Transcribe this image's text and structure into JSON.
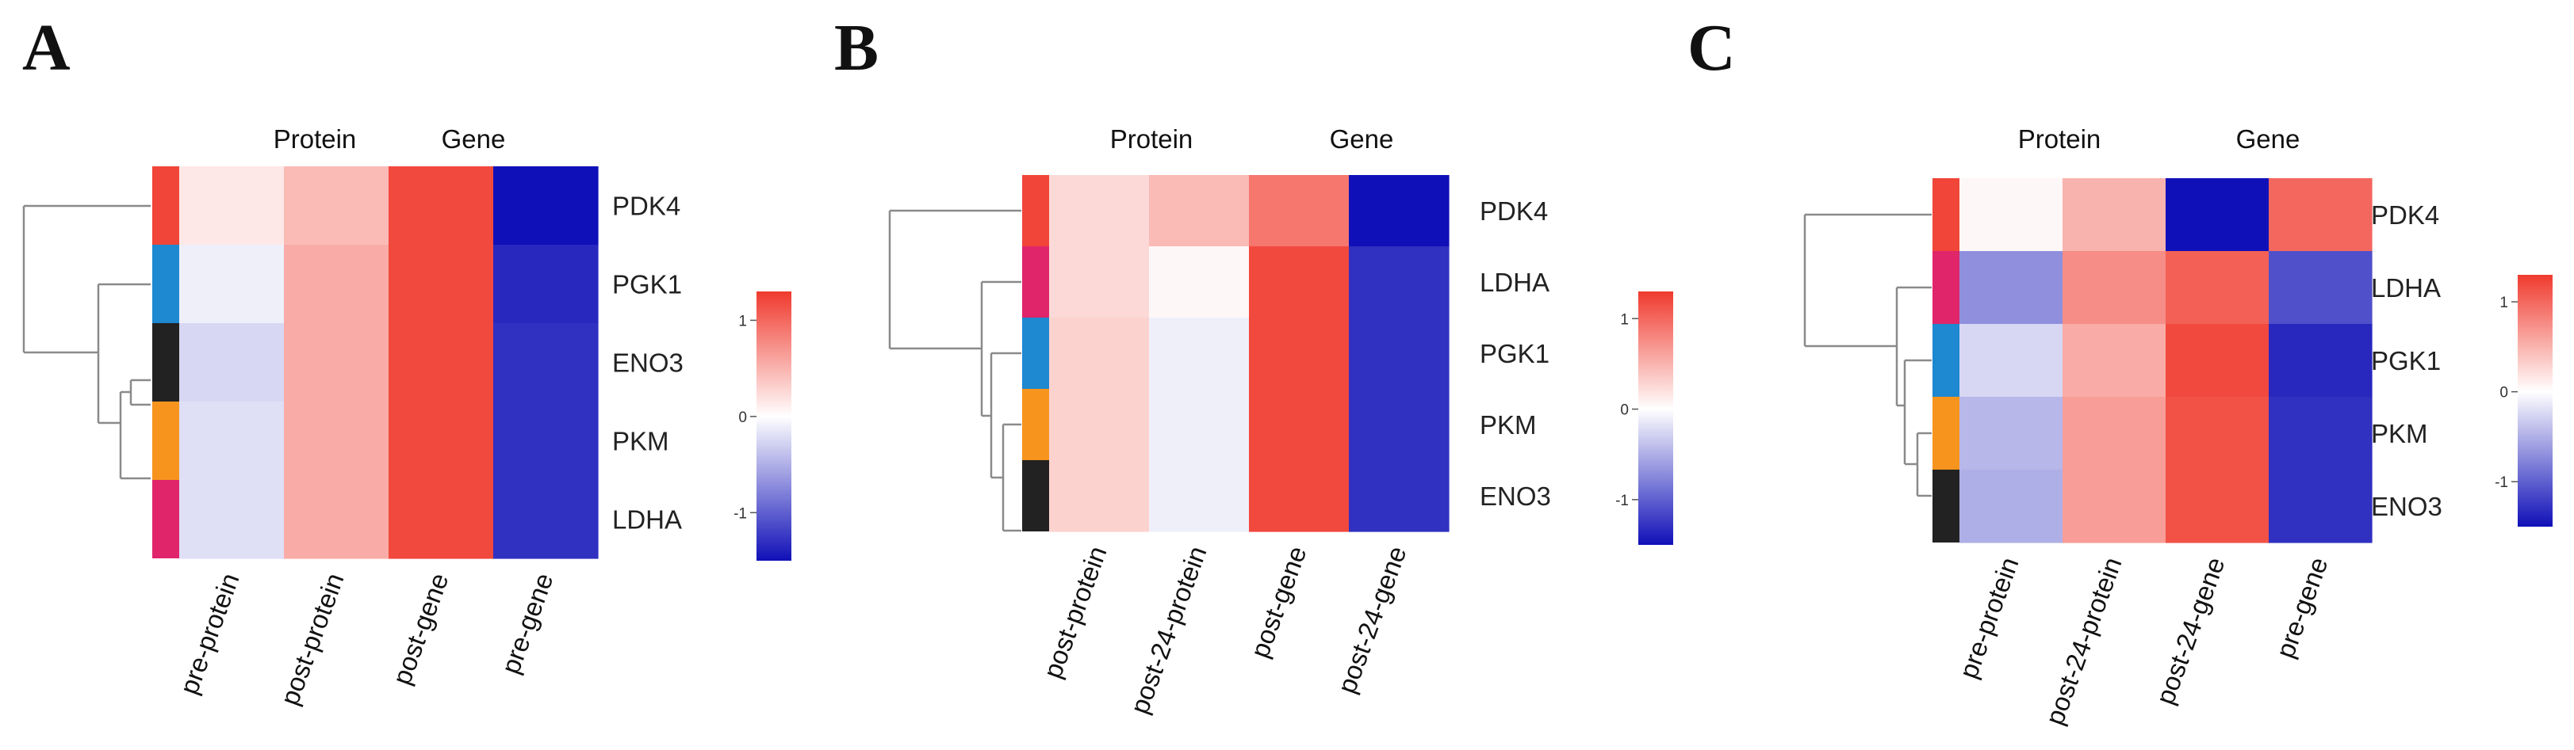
{
  "chart_data": [
    {
      "panel": "A",
      "type": "heatmap",
      "column_groups": [
        "Protein",
        "Gene"
      ],
      "columns": [
        "pre-protein",
        "post-protein",
        "post-gene",
        "pre-gene"
      ],
      "rows": [
        "PDK4",
        "PGK1",
        "ENO3",
        "PKM",
        "LDHA"
      ],
      "row_annotation_colors": [
        "#f04538",
        "#1e88d0",
        "#222222",
        "#f7941d",
        "#e0256a"
      ],
      "values": [
        [
          0.15,
          0.45,
          1.2,
          -1.5
        ],
        [
          -0.1,
          0.55,
          1.2,
          -1.35
        ],
        [
          -0.25,
          0.55,
          1.2,
          -1.3
        ],
        [
          -0.2,
          0.55,
          1.2,
          -1.3
        ],
        [
          -0.2,
          0.55,
          1.2,
          -1.3
        ]
      ],
      "colorbar": {
        "ticks": [
          1,
          0,
          -1
        ],
        "tick_labels": [
          "1",
          "0",
          "-1"
        ],
        "range": [
          -1.5,
          1.3
        ]
      },
      "colors": {
        "low": "#1010b8",
        "mid": "#ffffff",
        "high": "#f03a2e"
      }
    },
    {
      "panel": "B",
      "type": "heatmap",
      "column_groups": [
        "Protein",
        "Gene"
      ],
      "columns": [
        "post-protein",
        "post-24-protein",
        "post-gene",
        "post-24-gene"
      ],
      "rows": [
        "PDK4",
        "LDHA",
        "PGK1",
        "PKM",
        "ENO3"
      ],
      "row_annotation_colors": [
        "#f04538",
        "#e0256a",
        "#1e88d0",
        "#f7941d",
        "#222222"
      ],
      "values": [
        [
          0.25,
          0.45,
          0.9,
          -1.5
        ],
        [
          0.25,
          0.05,
          1.2,
          -1.3
        ],
        [
          0.3,
          -0.1,
          1.2,
          -1.3
        ],
        [
          0.3,
          -0.1,
          1.2,
          -1.3
        ],
        [
          0.3,
          -0.1,
          1.2,
          -1.3
        ]
      ],
      "colorbar": {
        "ticks": [
          1,
          0,
          -1
        ],
        "tick_labels": [
          "1",
          "0",
          "-1"
        ],
        "range": [
          -1.5,
          1.3
        ]
      },
      "colors": {
        "low": "#1010b8",
        "mid": "#ffffff",
        "high": "#f03a2e"
      }
    },
    {
      "panel": "C",
      "type": "heatmap",
      "column_groups": [
        "Protein",
        "Gene"
      ],
      "columns": [
        "pre-protein",
        "post-24-protein",
        "post-24-gene",
        "pre-gene"
      ],
      "rows": [
        "PDK4",
        "LDHA",
        "PGK1",
        "PKM",
        "ENO3"
      ],
      "row_annotation_colors": [
        "#f04538",
        "#e0256a",
        "#1e88d0",
        "#f7941d",
        "#222222"
      ],
      "values": [
        [
          0.05,
          0.5,
          -1.5,
          1.0
        ],
        [
          -0.7,
          0.75,
          1.05,
          -1.1
        ],
        [
          -0.25,
          0.55,
          1.2,
          -1.35
        ],
        [
          -0.45,
          0.65,
          1.15,
          -1.3
        ],
        [
          -0.5,
          0.65,
          1.15,
          -1.3
        ]
      ],
      "colorbar": {
        "ticks": [
          1,
          0,
          -1
        ],
        "tick_labels": [
          "1",
          "0",
          "-1"
        ],
        "range": [
          -1.5,
          1.3
        ]
      },
      "colors": {
        "low": "#1010b8",
        "mid": "#ffffff",
        "high": "#f03a2e"
      }
    }
  ]
}
